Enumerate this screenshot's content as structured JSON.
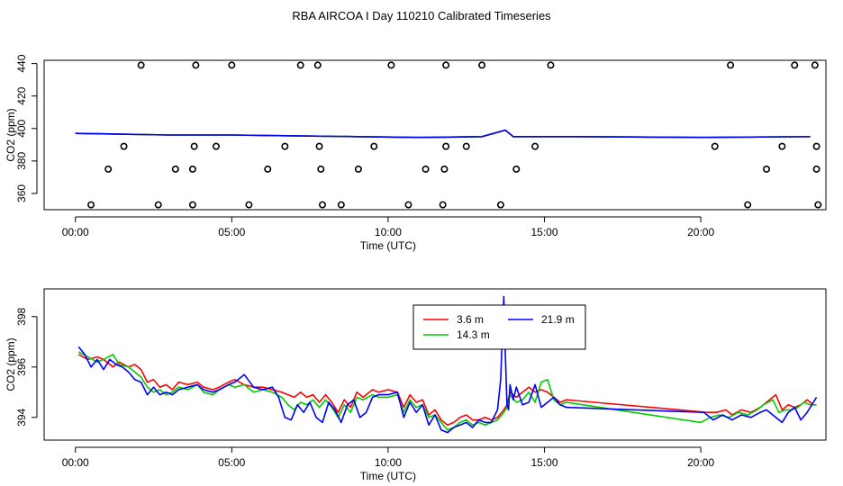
{
  "title": "RBA AIRCOA I  Day 110210  Calibrated Timeseries",
  "chart_data": [
    {
      "type": "scatter",
      "xlabel": "Time (UTC)",
      "ylabel": "CO2 (ppm)",
      "xlim": [
        -1.0,
        24.0
      ],
      "ylim": [
        350,
        442
      ],
      "xticks": [
        0,
        5,
        10,
        15,
        20
      ],
      "xtick_labels": [
        "00:00",
        "05:00",
        "10:00",
        "15:00",
        "20:00"
      ],
      "yticks": [
        360,
        380,
        400,
        420,
        440
      ],
      "ytick_labels": [
        "360",
        "380",
        "400",
        "420",
        "440"
      ],
      "grid": false,
      "points": [
        [
          2.1,
          439
        ],
        [
          3.85,
          439
        ],
        [
          5.0,
          439
        ],
        [
          7.2,
          439
        ],
        [
          7.75,
          439
        ],
        [
          10.1,
          439
        ],
        [
          11.85,
          439
        ],
        [
          13.0,
          439
        ],
        [
          15.2,
          439
        ],
        [
          20.95,
          439
        ],
        [
          23.0,
          439
        ],
        [
          23.65,
          439
        ],
        [
          1.55,
          389
        ],
        [
          3.8,
          389
        ],
        [
          4.5,
          389
        ],
        [
          6.7,
          389
        ],
        [
          7.8,
          389
        ],
        [
          9.55,
          389
        ],
        [
          11.85,
          389
        ],
        [
          12.5,
          389
        ],
        [
          14.7,
          389
        ],
        [
          20.45,
          389
        ],
        [
          22.6,
          389
        ],
        [
          23.7,
          389
        ],
        [
          1.05,
          375
        ],
        [
          3.2,
          375
        ],
        [
          3.75,
          375
        ],
        [
          6.15,
          375
        ],
        [
          7.85,
          375
        ],
        [
          9.05,
          375
        ],
        [
          11.2,
          375
        ],
        [
          11.8,
          375
        ],
        [
          14.1,
          375
        ],
        [
          22.1,
          375
        ],
        [
          23.7,
          375
        ],
        [
          0.5,
          353
        ],
        [
          2.65,
          353
        ],
        [
          3.75,
          353
        ],
        [
          5.55,
          353
        ],
        [
          7.9,
          353
        ],
        [
          8.5,
          353
        ],
        [
          10.65,
          353
        ],
        [
          11.75,
          353
        ],
        [
          13.6,
          353
        ],
        [
          21.5,
          353
        ],
        [
          23.75,
          353
        ]
      ],
      "series": [
        {
          "color": "#ff0000",
          "x": [
            0.0,
            3.0,
            5.0,
            7.0,
            9.0,
            11.0,
            13.0,
            13.75,
            14.0,
            16.0,
            20.0,
            23.5
          ],
          "y": [
            397,
            396,
            396,
            395.5,
            395,
            394.5,
            395,
            399,
            395,
            395,
            394.5,
            395
          ]
        },
        {
          "color": "#00cc00",
          "x": [
            0.0,
            3.0,
            5.0,
            7.0,
            9.0,
            11.0,
            13.0,
            13.75,
            14.0,
            16.0,
            20.0,
            23.5
          ],
          "y": [
            397,
            396,
            396,
            395.5,
            395,
            394.5,
            395,
            399,
            395,
            395,
            394.5,
            395
          ]
        },
        {
          "color": "#0000ff",
          "x": [
            0.0,
            3.0,
            5.0,
            7.0,
            9.0,
            11.0,
            13.0,
            13.75,
            14.0,
            16.0,
            20.0,
            23.5
          ],
          "y": [
            397,
            396,
            396,
            395.5,
            395,
            394.5,
            395,
            399,
            395,
            395,
            394.5,
            395
          ]
        }
      ]
    },
    {
      "type": "line",
      "xlabel": "Time (UTC)",
      "ylabel": "CO2 (ppm)",
      "xlim": [
        -1.0,
        24.0
      ],
      "ylim": [
        393.1,
        399.1
      ],
      "xticks": [
        0,
        5,
        10,
        15,
        20
      ],
      "xtick_labels": [
        "00:00",
        "05:00",
        "10:00",
        "15:00",
        "20:00"
      ],
      "yticks": [
        394,
        396,
        398
      ],
      "ytick_labels": [
        "394",
        "396",
        "398"
      ],
      "grid": false,
      "legend_position": "top-center",
      "series": [
        {
          "name": "3.6 m",
          "color": "#ff0000",
          "x": [
            0.1,
            0.4,
            0.7,
            0.9,
            1.2,
            1.4,
            1.7,
            1.9,
            2.1,
            2.3,
            2.5,
            2.7,
            2.9,
            3.1,
            3.3,
            3.6,
            3.9,
            4.1,
            4.4,
            4.6,
            4.9,
            5.1,
            5.4,
            5.7,
            6.0,
            6.3,
            6.6,
            6.8,
            7.0,
            7.2,
            7.4,
            7.6,
            7.8,
            8.0,
            8.2,
            8.4,
            8.6,
            8.8,
            9.0,
            9.2,
            9.5,
            9.7,
            10.0,
            10.3,
            10.5,
            10.7,
            10.9,
            11.1,
            11.3,
            11.5,
            11.7,
            11.9,
            12.1,
            12.3,
            12.5,
            12.7,
            12.9,
            13.1,
            13.3,
            13.5,
            13.7,
            13.8,
            13.9,
            14.1,
            14.3,
            14.5,
            14.7,
            14.9,
            15.1,
            15.3,
            15.5,
            15.7,
            20.2,
            20.5,
            20.8,
            21.0,
            21.3,
            21.6,
            21.9,
            22.1,
            22.4,
            22.6,
            22.8,
            23.0,
            23.2,
            23.4,
            23.6
          ],
          "y": [
            396.5,
            396.3,
            396.4,
            396.3,
            396.0,
            396.2,
            396.0,
            396.1,
            395.9,
            395.4,
            395.5,
            395.2,
            395.3,
            395.1,
            395.4,
            395.3,
            395.4,
            395.2,
            395.1,
            395.2,
            395.4,
            395.5,
            395.3,
            395.2,
            395.2,
            395.1,
            395.0,
            394.9,
            394.8,
            395.0,
            394.8,
            394.9,
            394.6,
            394.9,
            394.6,
            394.2,
            394.7,
            394.4,
            395.0,
            394.8,
            395.1,
            395.0,
            395.1,
            395.0,
            394.4,
            394.9,
            394.6,
            394.7,
            394.1,
            394.3,
            393.9,
            393.7,
            393.8,
            394.0,
            394.1,
            393.9,
            393.9,
            394.0,
            393.9,
            394.0,
            394.3,
            394.5,
            395.0,
            394.8,
            395.0,
            395.2,
            395.0,
            395.1,
            395.0,
            394.8,
            394.6,
            394.7,
            394.2,
            394.2,
            394.3,
            394.1,
            394.3,
            394.2,
            394.4,
            394.6,
            394.9,
            394.3,
            394.5,
            394.4,
            394.5,
            394.7,
            394.5
          ]
        },
        {
          "name": "14.3 m",
          "color": "#00cc00",
          "x": [
            0.1,
            0.4,
            0.7,
            0.9,
            1.2,
            1.4,
            1.7,
            1.9,
            2.1,
            2.3,
            2.5,
            2.7,
            2.9,
            3.1,
            3.3,
            3.6,
            3.9,
            4.1,
            4.4,
            4.6,
            4.9,
            5.1,
            5.4,
            5.7,
            6.0,
            6.3,
            6.6,
            6.8,
            7.0,
            7.2,
            7.4,
            7.6,
            7.8,
            8.0,
            8.2,
            8.4,
            8.6,
            8.8,
            9.0,
            9.2,
            9.5,
            9.7,
            10.0,
            10.3,
            10.5,
            10.7,
            10.9,
            11.1,
            11.3,
            11.5,
            11.7,
            11.9,
            12.1,
            12.3,
            12.5,
            12.7,
            12.9,
            13.1,
            13.3,
            13.5,
            13.7,
            13.8,
            13.9,
            14.1,
            14.3,
            14.5,
            14.7,
            14.9,
            15.1,
            15.3,
            15.5,
            15.7,
            20.0,
            20.3,
            20.6,
            20.9,
            21.2,
            21.5,
            21.8,
            22.0,
            22.3,
            22.5,
            22.7,
            22.9,
            23.1,
            23.3,
            23.5,
            23.7
          ],
          "y": [
            396.6,
            396.4,
            396.2,
            396.3,
            396.5,
            396.1,
            396.0,
            395.8,
            395.6,
            395.2,
            395.0,
            395.1,
            394.9,
            395.0,
            395.2,
            395.1,
            395.3,
            395.0,
            394.9,
            395.1,
            395.3,
            395.2,
            395.3,
            395.0,
            395.1,
            395.0,
            394.8,
            394.5,
            394.3,
            394.6,
            394.5,
            394.7,
            394.4,
            394.7,
            394.4,
            394.0,
            394.5,
            394.2,
            394.8,
            394.7,
            394.9,
            394.8,
            394.8,
            394.9,
            394.2,
            394.7,
            394.4,
            394.5,
            394.0,
            394.1,
            393.8,
            393.5,
            393.6,
            393.8,
            393.9,
            393.7,
            393.8,
            393.7,
            393.8,
            393.9,
            394.2,
            394.4,
            394.9,
            394.6,
            394.7,
            395.0,
            394.6,
            395.4,
            395.5,
            394.7,
            394.5,
            394.6,
            393.8,
            394.0,
            394.1,
            394.0,
            394.2,
            394.1,
            394.3,
            394.5,
            394.7,
            394.2,
            394.3,
            394.3,
            394.4,
            394.6,
            394.5,
            394.5
          ]
        },
        {
          "name": "21.9 m",
          "color": "#0000ff",
          "x": [
            0.1,
            0.3,
            0.5,
            0.7,
            0.9,
            1.1,
            1.3,
            1.5,
            1.7,
            1.9,
            2.1,
            2.3,
            2.5,
            2.7,
            2.9,
            3.1,
            3.3,
            3.6,
            3.9,
            4.1,
            4.4,
            4.6,
            4.9,
            5.1,
            5.4,
            5.7,
            6.0,
            6.3,
            6.5,
            6.7,
            6.9,
            7.1,
            7.3,
            7.5,
            7.7,
            7.9,
            8.1,
            8.3,
            8.5,
            8.7,
            8.9,
            9.1,
            9.3,
            9.5,
            9.7,
            10.0,
            10.3,
            10.5,
            10.7,
            10.9,
            11.1,
            11.3,
            11.5,
            11.7,
            11.9,
            12.1,
            12.3,
            12.5,
            12.7,
            12.9,
            13.1,
            13.3,
            13.5,
            13.6,
            13.7,
            13.75,
            13.8,
            13.85,
            13.9,
            14.0,
            14.1,
            14.3,
            14.5,
            14.7,
            14.9,
            15.1,
            15.3,
            15.5,
            15.7,
            20.1,
            20.4,
            20.7,
            21.0,
            21.3,
            21.6,
            21.9,
            22.1,
            22.4,
            22.6,
            22.8,
            23.0,
            23.2,
            23.4,
            23.6,
            23.7
          ],
          "y": [
            396.8,
            396.5,
            396.0,
            396.3,
            395.9,
            396.3,
            396.1,
            396.0,
            395.8,
            395.5,
            395.4,
            394.9,
            395.2,
            394.9,
            395.0,
            394.9,
            395.1,
            395.2,
            395.3,
            395.1,
            395.0,
            395.1,
            395.3,
            395.4,
            395.7,
            395.2,
            395.1,
            395.2,
            394.8,
            394.0,
            393.9,
            394.5,
            394.2,
            394.6,
            394.0,
            393.8,
            394.6,
            394.3,
            393.8,
            394.5,
            394.7,
            394.0,
            394.2,
            394.8,
            394.9,
            394.9,
            395.0,
            394.0,
            394.6,
            394.2,
            394.5,
            393.7,
            394.1,
            393.5,
            393.4,
            393.6,
            393.7,
            393.8,
            393.6,
            393.9,
            393.8,
            393.8,
            394.3,
            395.5,
            398.8,
            396.5,
            394.5,
            394.3,
            395.3,
            394.7,
            395.2,
            394.5,
            394.6,
            395.3,
            394.4,
            394.6,
            394.8,
            394.5,
            394.4,
            394.2,
            393.9,
            394.1,
            393.9,
            394.1,
            394.0,
            394.2,
            394.3,
            394.0,
            393.8,
            394.2,
            394.4,
            393.9,
            394.2,
            394.6,
            394.8
          ]
        }
      ]
    }
  ]
}
